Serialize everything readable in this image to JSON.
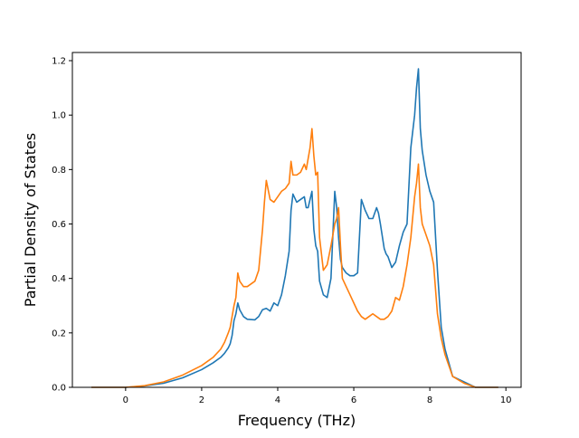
{
  "chart_data": {
    "type": "line",
    "xlabel": "Frequency (THz)",
    "ylabel": "Partial Density of States",
    "xlim": [
      -1.4,
      10.4
    ],
    "ylim": [
      0.0,
      1.23
    ],
    "xticks": [
      0,
      2,
      4,
      6,
      8,
      10
    ],
    "xtick_labels": [
      "0",
      "2",
      "4",
      "6",
      "8",
      "10"
    ],
    "yticks": [
      0.0,
      0.2,
      0.4,
      0.6,
      0.8,
      1.0,
      1.2
    ],
    "ytick_labels": [
      "0.0",
      "0.2",
      "0.4",
      "0.6",
      "0.8",
      "1.0",
      "1.2"
    ],
    "grid": false,
    "legend": "none",
    "series": [
      {
        "color": "#1f77b4",
        "x": [
          -0.9,
          -0.5,
          0.0,
          0.5,
          1.0,
          1.5,
          2.0,
          2.3,
          2.5,
          2.6,
          2.7,
          2.75,
          2.8,
          2.85,
          2.9,
          2.95,
          3.0,
          3.1,
          3.2,
          3.4,
          3.5,
          3.6,
          3.7,
          3.8,
          3.9,
          4.0,
          4.1,
          4.2,
          4.3,
          4.35,
          4.4,
          4.5,
          4.6,
          4.7,
          4.75,
          4.8,
          4.85,
          4.9,
          4.95,
          5.0,
          5.05,
          5.1,
          5.2,
          5.3,
          5.4,
          5.5,
          5.55,
          5.6,
          5.65,
          5.7,
          5.8,
          5.9,
          6.0,
          6.1,
          6.2,
          6.3,
          6.4,
          6.5,
          6.6,
          6.65,
          6.7,
          6.8,
          6.85,
          6.9,
          7.0,
          7.1,
          7.2,
          7.3,
          7.4,
          7.5,
          7.6,
          7.65,
          7.7,
          7.75,
          7.8,
          7.9,
          8.0,
          8.1,
          8.2,
          8.3,
          8.4,
          8.6,
          8.9,
          9.2,
          9.5,
          9.8
        ],
        "y": [
          0.0,
          0.0,
          0.0,
          0.005,
          0.015,
          0.035,
          0.065,
          0.09,
          0.11,
          0.125,
          0.145,
          0.16,
          0.19,
          0.245,
          0.27,
          0.31,
          0.285,
          0.26,
          0.25,
          0.248,
          0.26,
          0.285,
          0.29,
          0.28,
          0.31,
          0.3,
          0.34,
          0.41,
          0.5,
          0.65,
          0.71,
          0.68,
          0.69,
          0.7,
          0.66,
          0.66,
          0.69,
          0.72,
          0.58,
          0.52,
          0.5,
          0.39,
          0.34,
          0.33,
          0.4,
          0.72,
          0.66,
          0.55,
          0.47,
          0.44,
          0.42,
          0.41,
          0.41,
          0.42,
          0.69,
          0.65,
          0.62,
          0.62,
          0.66,
          0.64,
          0.6,
          0.51,
          0.49,
          0.48,
          0.44,
          0.46,
          0.52,
          0.57,
          0.6,
          0.88,
          1.0,
          1.1,
          1.17,
          0.95,
          0.87,
          0.78,
          0.72,
          0.68,
          0.43,
          0.22,
          0.14,
          0.04,
          0.02,
          0.0,
          0.0,
          0.0
        ]
      },
      {
        "color": "#ff7f0e",
        "x": [
          -0.9,
          -0.5,
          0.0,
          0.5,
          1.0,
          1.5,
          2.0,
          2.3,
          2.5,
          2.6,
          2.7,
          2.75,
          2.8,
          2.85,
          2.9,
          2.95,
          3.0,
          3.1,
          3.2,
          3.4,
          3.5,
          3.6,
          3.65,
          3.7,
          3.8,
          3.9,
          4.0,
          4.1,
          4.2,
          4.3,
          4.35,
          4.4,
          4.5,
          4.6,
          4.7,
          4.75,
          4.8,
          4.85,
          4.9,
          4.95,
          5.0,
          5.05,
          5.1,
          5.2,
          5.3,
          5.4,
          5.5,
          5.55,
          5.6,
          5.65,
          5.7,
          5.8,
          5.9,
          6.0,
          6.1,
          6.2,
          6.3,
          6.4,
          6.5,
          6.6,
          6.7,
          6.8,
          6.9,
          7.0,
          7.1,
          7.2,
          7.3,
          7.4,
          7.5,
          7.6,
          7.65,
          7.7,
          7.75,
          7.8,
          7.9,
          8.0,
          8.1,
          8.2,
          8.3,
          8.4,
          8.6,
          8.9,
          9.2,
          9.5,
          9.8
        ],
        "y": [
          0.0,
          0.0,
          0.0,
          0.006,
          0.02,
          0.045,
          0.08,
          0.11,
          0.14,
          0.165,
          0.2,
          0.22,
          0.26,
          0.3,
          0.33,
          0.42,
          0.39,
          0.37,
          0.37,
          0.39,
          0.43,
          0.58,
          0.68,
          0.76,
          0.69,
          0.68,
          0.7,
          0.72,
          0.73,
          0.75,
          0.83,
          0.78,
          0.78,
          0.79,
          0.82,
          0.8,
          0.84,
          0.88,
          0.95,
          0.85,
          0.78,
          0.79,
          0.55,
          0.43,
          0.45,
          0.52,
          0.6,
          0.62,
          0.66,
          0.52,
          0.4,
          0.37,
          0.34,
          0.31,
          0.28,
          0.26,
          0.25,
          0.26,
          0.27,
          0.26,
          0.25,
          0.25,
          0.26,
          0.28,
          0.33,
          0.32,
          0.37,
          0.45,
          0.55,
          0.7,
          0.75,
          0.82,
          0.66,
          0.6,
          0.56,
          0.52,
          0.45,
          0.27,
          0.18,
          0.12,
          0.04,
          0.015,
          0.0,
          0.0,
          0.0
        ]
      }
    ]
  }
}
